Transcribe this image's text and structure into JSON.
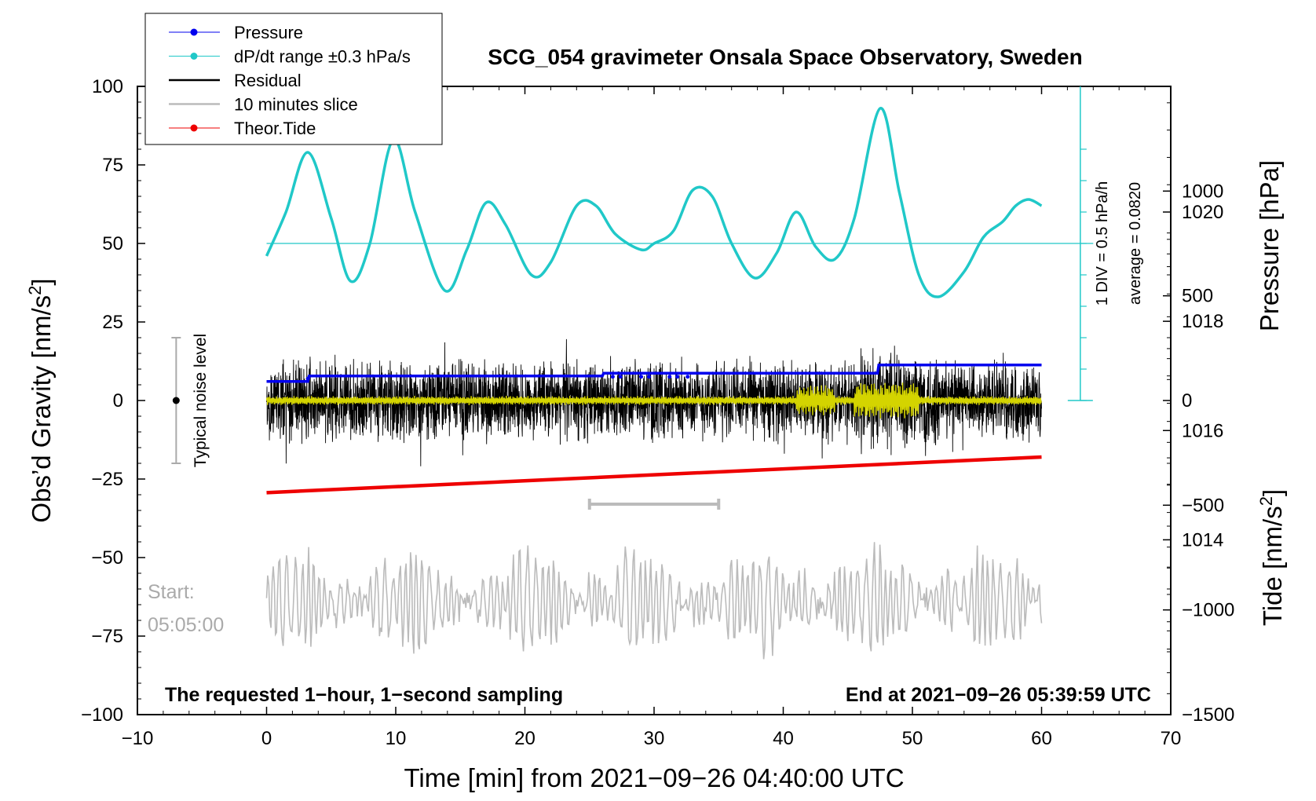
{
  "chart_data": {
    "type": "line",
    "title": "SCG_054 gravimeter Onsala Space Observatory, Sweden",
    "xlabel": "Time [min] from 2021−09−26 04:40:00 UTC",
    "ylabel_left": "Obs’d Gravity [nm/s",
    "ylabel_left_sup": "2",
    "ylabel_left_end": "]",
    "ylabel_right_pressure": "Pressure [hPa]",
    "ylabel_right_tide": "Tide [nm/s",
    "ylabel_right_tide_sup": "2",
    "ylabel_right_tide_end": "]",
    "xlim": [
      -10,
      70
    ],
    "ylim": [
      -100,
      100
    ],
    "pressure_lim": [
      1010.8,
      1022.3
    ],
    "tide_lim": [
      -1500,
      1500
    ],
    "x_ticks": [
      "−10",
      "0",
      "10",
      "20",
      "30",
      "40",
      "50",
      "60",
      "70"
    ],
    "x_tick_values": [
      -10,
      0,
      10,
      20,
      30,
      40,
      50,
      60,
      70
    ],
    "y_left_ticks": [
      "100",
      "75",
      "50",
      "25",
      "0",
      "−25",
      "−50",
      "−75",
      "−100"
    ],
    "y_left_tick_values": [
      100,
      75,
      50,
      25,
      0,
      -25,
      -50,
      -75,
      -100
    ],
    "pressure_ticks": [
      "1020",
      "1018",
      "1016",
      "1014"
    ],
    "pressure_tick_values": [
      1020,
      1018,
      1016,
      1014
    ],
    "tide_ticks": [
      "1000",
      "500",
      "0",
      "−500",
      "−1000",
      "−1500"
    ],
    "tide_tick_values": [
      1000,
      500,
      0,
      -500,
      -1000,
      -1500
    ],
    "legend": [
      {
        "label": "Pressure",
        "color": "#0000ee",
        "marker": true
      },
      {
        "label": "dP/dt range ±0.3 hPa/s",
        "color": "#20c8c8",
        "marker": true
      },
      {
        "label": "Residual",
        "color": "#000000",
        "marker": false
      },
      {
        "label": "10 minutes slice",
        "color": "#bbbbbb",
        "marker": false
      },
      {
        "label": "Theor.Tide",
        "color": "#ee0000",
        "marker": true
      }
    ],
    "series": [
      {
        "name": "Pressure",
        "axis": "pressure",
        "color": "#0000ee",
        "x": [
          0,
          3.2,
          3.3,
          26,
          26.1,
          47.3,
          47.4,
          60
        ],
        "values": [
          1016.9,
          1016.9,
          1017.0,
          1017.0,
          1017.05,
          1017.05,
          1017.2,
          1017.2
        ]
      },
      {
        "name": "dP/dt range ±0.3 hPa/s",
        "axis": "gravity",
        "color": "#20c8c8",
        "x": [
          0,
          1.5,
          3.2,
          5,
          6.5,
          8,
          9.8,
          11.5,
          13.8,
          15.5,
          17,
          18.5,
          20.5,
          22,
          24,
          25.5,
          27,
          29,
          30,
          31.5,
          33,
          34.5,
          36,
          37.8,
          39.5,
          41,
          42.5,
          44,
          45.5,
          47.5,
          49,
          50.5,
          52,
          54,
          55.5,
          57,
          58,
          59,
          60
        ],
        "values": [
          46,
          60,
          79,
          58,
          38,
          50,
          83,
          60,
          35,
          48,
          63,
          56,
          40,
          44,
          62,
          62,
          53,
          48,
          50,
          54,
          67,
          65,
          50,
          39,
          47,
          60,
          49,
          45,
          58,
          93,
          66,
          40,
          33,
          41,
          52,
          57,
          62,
          64,
          62
        ]
      },
      {
        "name": "Residual",
        "axis": "gravity",
        "color": "#000000",
        "x": [
          0,
          60
        ],
        "amplitude": 12,
        "amplitude_max": 25,
        "values_range": [
          -31,
          25
        ]
      },
      {
        "name": "Residual smoothed",
        "axis": "gravity",
        "color": "#d4d400",
        "x": [
          0,
          60
        ],
        "values_range": [
          -6,
          6
        ]
      },
      {
        "name": "10 minutes slice",
        "axis": "gravity",
        "color": "#bbbbbb",
        "x": [
          0,
          60
        ],
        "center": -64,
        "values_range": [
          -83,
          -43
        ]
      },
      {
        "name": "Theor.Tide",
        "axis": "tide",
        "color": "#ee0000",
        "x": [
          0,
          60
        ],
        "values": [
          -440,
          -270
        ]
      }
    ],
    "slice_bar": {
      "x": [
        25,
        35
      ],
      "y": -33
    },
    "noise_level": {
      "x": -7,
      "range": [
        -20,
        20
      ],
      "center": 0,
      "label": "Typical noise level"
    },
    "pressure_scale": {
      "label1": "1 DIV = 0.5 hPa/h",
      "label2": "average = 0.0820"
    },
    "start_label": "Start:",
    "start_time": "05:05:00",
    "note_left": "The requested 1−hour, 1−second sampling",
    "note_right": "End at 2021−09−26 05:39:59 UTC"
  }
}
